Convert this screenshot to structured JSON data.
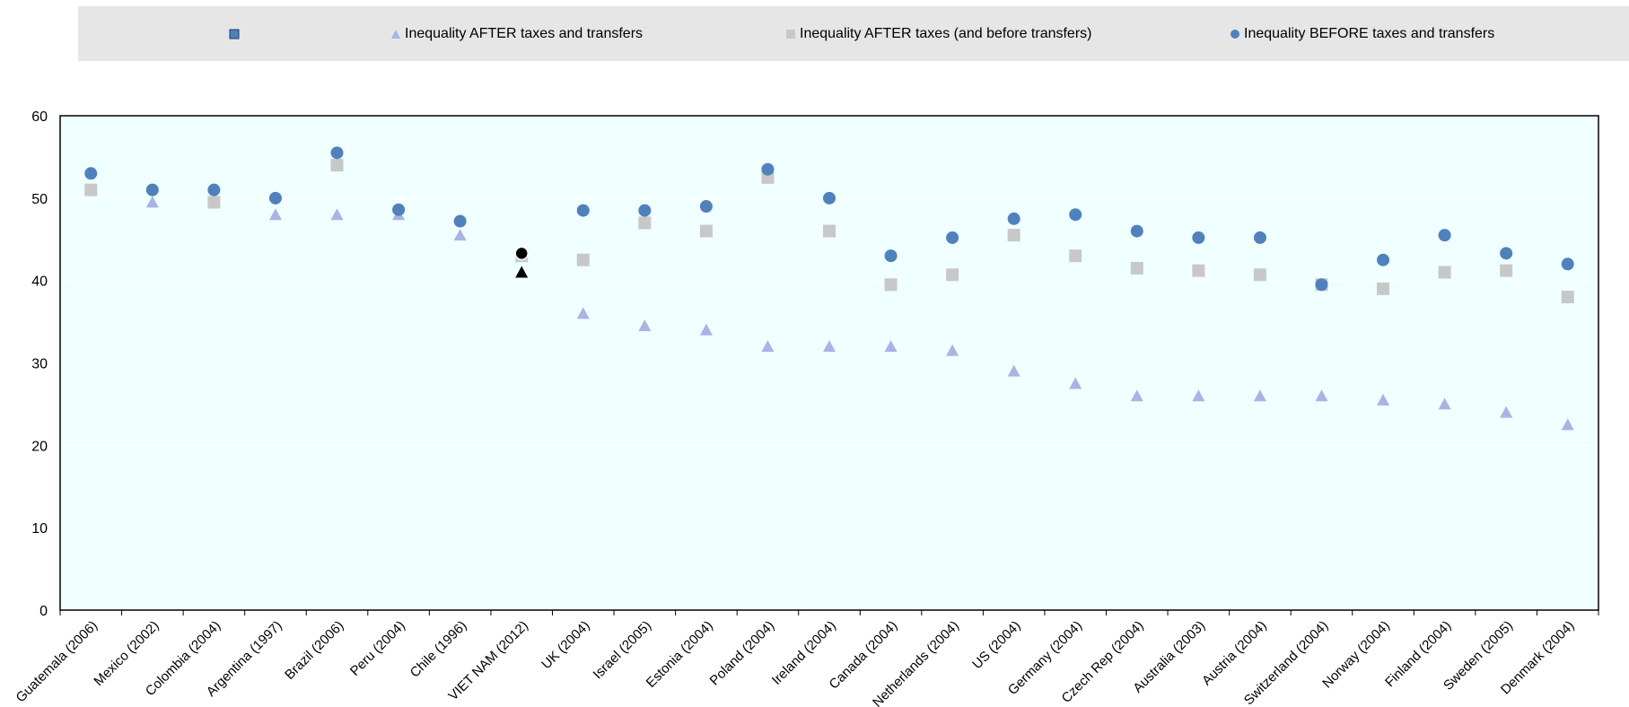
{
  "legend": {
    "item_0": "",
    "item_1": "Inequality  AFTER taxes and transfers",
    "item_2": "Inequality AFTER taxes (and before transfers)",
    "item_3": "Inequality BEFORE taxes and transfers"
  },
  "colors": {
    "after_taxes_transfers": "#a7b4e6",
    "after_taxes_before_transfers": "#c8c8c8",
    "before_taxes_transfers": "#4f81bd",
    "highlight": "#000000",
    "plot_background": "#f0ffff",
    "legend_background": "#e6e6e6"
  },
  "chart_data": {
    "type": "scatter",
    "categories": [
      "Guatemala (2006)",
      "Mexico (2002)",
      "Colombia (2004)",
      "Argentina (1997)",
      "Brazil (2006)",
      "Peru (2004)",
      "Chile (1996)",
      "VIET NAM (2012)",
      "UK (2004)",
      "Israel (2005)",
      "Estonia (2004)",
      "Poland (2004)",
      "Ireland (2004)",
      "Canada (2004)",
      "Netherlands (2004)",
      "US (2004)",
      "Germany (2004)",
      "Czech Rep (2004)",
      "Australia (2003)",
      "Austria (2004)",
      "Switzerland (2004)",
      "Norway (2004)",
      "Finland (2004)",
      "Sweden (2005)",
      "Denmark (2004)"
    ],
    "highlight_category": "VIET NAM (2012)",
    "series": [
      {
        "name": "Inequality  AFTER taxes and transfers",
        "marker": "triangle",
        "values": [
          51,
          49.5,
          49.5,
          48,
          48,
          48,
          45.5,
          41,
          36,
          34.5,
          34,
          32,
          32,
          32,
          31.5,
          29,
          27.5,
          26,
          26,
          26,
          26,
          25.5,
          25,
          24,
          22.5
        ]
      },
      {
        "name": "Inequality AFTER taxes (and before transfers)",
        "marker": "square",
        "values": [
          51,
          null,
          49.5,
          null,
          54,
          null,
          null,
          43,
          42.5,
          47,
          46,
          52.5,
          46,
          39.5,
          40.7,
          45.5,
          43,
          41.5,
          41.2,
          40.7,
          39.5,
          39,
          41,
          41.2,
          38
        ]
      },
      {
        "name": "Inequality BEFORE taxes and transfers",
        "marker": "circle",
        "values": [
          53,
          51,
          51,
          50,
          55.5,
          48.6,
          47.2,
          43.3,
          48.5,
          48.5,
          49,
          53.5,
          50,
          43,
          45.2,
          47.5,
          48,
          46,
          45.2,
          45.2,
          39.5,
          42.5,
          45.5,
          43.3,
          42
        ]
      }
    ],
    "y_ticks": [
      "0",
      "10",
      "20",
      "30",
      "40",
      "50",
      "60"
    ],
    "ylim": [
      0,
      60
    ],
    "grid": true
  }
}
